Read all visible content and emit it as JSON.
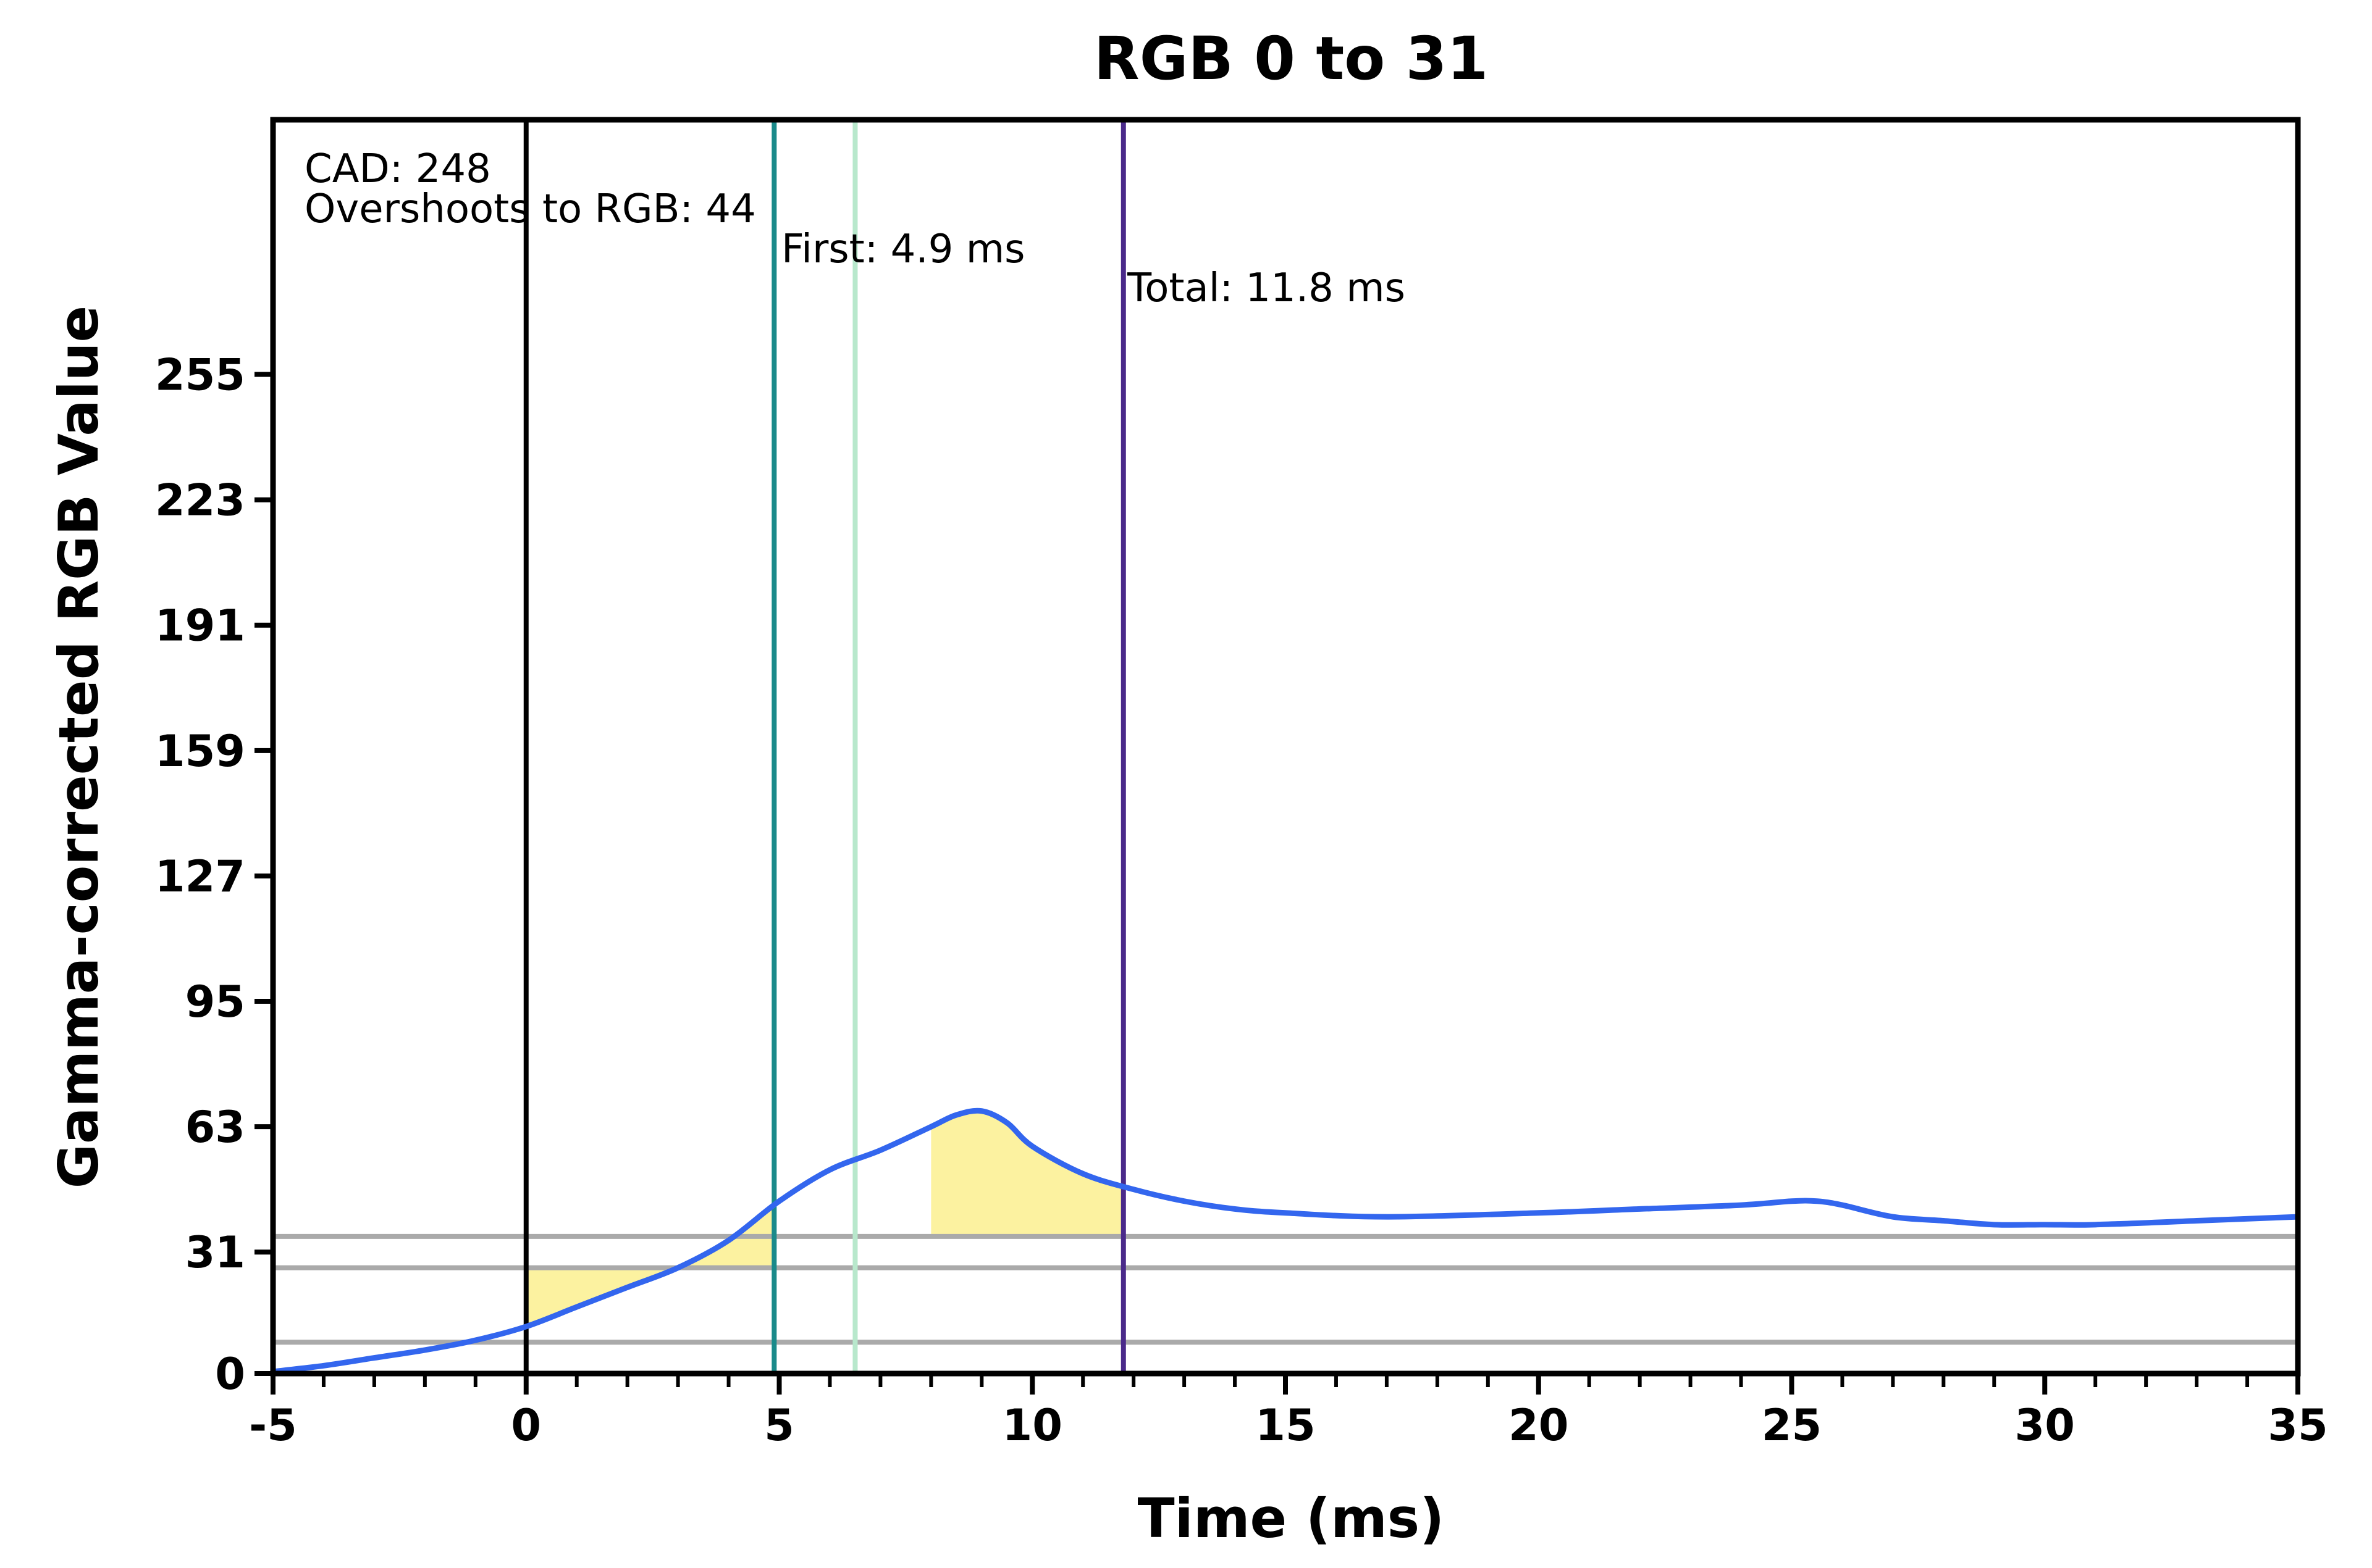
{
  "chart_data": {
    "type": "line",
    "title": "RGB 0 to 31",
    "xlabel": "Time (ms)",
    "ylabel": "Gamma-corrected RGB Value",
    "xlim": [
      -5,
      35
    ],
    "ylim": [
      0,
      320
    ],
    "xticks": [
      -5,
      0,
      5,
      10,
      15,
      20,
      25,
      30,
      35
    ],
    "yticks": [
      0,
      31,
      63,
      95,
      127,
      159,
      191,
      223,
      255
    ],
    "grid": false,
    "legend": "none",
    "series": [
      {
        "color": "#3366ee",
        "x": [
          -5,
          -4,
          -3,
          -2,
          -1,
          0,
          1,
          2,
          3,
          4,
          5,
          6,
          7,
          8,
          8.5,
          9,
          9.5,
          10,
          11,
          12,
          13,
          14,
          15,
          17,
          20,
          22,
          24,
          25,
          25.5,
          26,
          27,
          28,
          29,
          30,
          31,
          33,
          35
        ],
        "y": [
          0.5,
          2,
          4,
          6,
          8.5,
          12,
          17,
          22,
          27,
          34,
          44,
          52,
          57,
          63,
          66,
          67,
          64,
          58,
          51,
          47,
          44,
          42,
          41,
          40,
          41,
          42,
          43,
          44,
          44,
          43,
          40,
          39,
          38,
          38,
          38,
          39,
          40
        ]
      }
    ],
    "hlines": [
      {
        "y": 8,
        "color": "#aaaaaa"
      },
      {
        "y": 27,
        "color": "#aaaaaa"
      },
      {
        "y": 35,
        "color": "#aaaaaa"
      }
    ],
    "vlines": [
      {
        "x": 0,
        "color": "#000000"
      },
      {
        "x": 4.9,
        "color": "#1a8a8a"
      },
      {
        "x": 6.5,
        "color": "#b8e8cc"
      },
      {
        "x": 11.8,
        "color": "#4a2a8a"
      }
    ],
    "shaded_regions": [
      {
        "x_from": 0,
        "x_to": 4.9,
        "y_ref": 27,
        "color": "#fcf2a0"
      },
      {
        "x_from": 8,
        "x_to": 11.8,
        "y_ref": 35,
        "color": "#fcf2a0"
      }
    ],
    "annotations": {
      "cad": "CAD: 248",
      "overshoot": "Overshoots to RGB: 44",
      "first": "First: 4.9 ms",
      "total": "Total: 11.8 ms"
    }
  }
}
